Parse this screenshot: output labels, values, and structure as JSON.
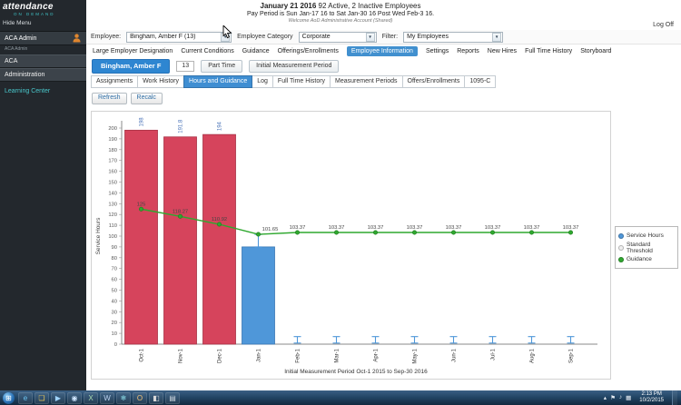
{
  "header": {
    "date_bold": "January 21 2016",
    "date_rest": " 92 Active, 2 Inactive Employees",
    "pay_period": "Pay Period is Sun Jan-17 16 to Sat Jan-30 16 Post Wed Feb-3 16.",
    "welcome": "Welcome AoD Administrative Account (Shared)",
    "log_off": "Log Off"
  },
  "sidebar": {
    "logo_line1": "attendance",
    "logo_line2": "ON DEMAND",
    "hide_menu": "Hide Menu",
    "account_name": "ACA Admin",
    "account_sub": "ACA Admin",
    "items": [
      {
        "label": "ACA"
      },
      {
        "label": "Administration"
      }
    ],
    "learning_center": "Learning Center"
  },
  "toolbar": {
    "employee_label": "Employee:",
    "employee_value": "Bingham, Amber F (13)",
    "category_label": "Employee Category",
    "category_value": "Corporate",
    "filter_label": "Filter:",
    "filter_value": "My Employees"
  },
  "tabs": {
    "active_index": 4,
    "items": [
      "Large Employer Designation",
      "Current Conditions",
      "Guidance",
      "Offerings/Enrollments",
      "Employee Information",
      "Settings",
      "Reports",
      "New Hires",
      "Full Time History",
      "Storyboard"
    ]
  },
  "employee_bar": {
    "name": "Bingham, Amber F",
    "number": "13",
    "type": "Part Time",
    "period": "Initial Measurement Period"
  },
  "subtabs": {
    "active_index": 2,
    "items": [
      "Assignments",
      "Work History",
      "Hours and Guidance",
      "Log",
      "Full Time History",
      "Measurement Periods",
      "Offers/Enrollments",
      "1095-C"
    ]
  },
  "actions": {
    "refresh": "Refresh",
    "recalc": "Recalc"
  },
  "chart_data": {
    "type": "bar",
    "categories": [
      "Oct-1",
      "Nov-1",
      "Dec-1",
      "Jan-1",
      "Feb-1",
      "Mar-1",
      "Apr-1",
      "May-1",
      "Jun-1",
      "Jul-1",
      "Aug-1",
      "Sep-1"
    ],
    "series": [
      {
        "name": "Service Hours",
        "type": "bar",
        "values": [
          198,
          191.8,
          194,
          90,
          null,
          null,
          null,
          null,
          null,
          null,
          null,
          null
        ],
        "labels": [
          "198",
          "191.8",
          "194",
          "",
          "",
          "",
          "",
          "",
          "",
          "",
          "",
          ""
        ],
        "colors": [
          "#d6445c",
          "#d6445c",
          "#d6445c",
          "#4f97d9"
        ],
        "strokes": [
          "#a83246",
          "#a83246",
          "#a83246",
          "#3a78b5"
        ]
      },
      {
        "name": "Guidance",
        "type": "line",
        "color": "#2fa82f",
        "point_stroke": "#1e7a1e",
        "values": [
          125,
          118.27,
          110.92,
          101.65,
          103.37,
          103.37,
          103.37,
          103.37,
          103.37,
          103.37,
          103.37,
          103.37
        ],
        "labels": [
          "125",
          "118.27",
          "110.92",
          "101.65",
          "103.37",
          "103.37",
          "103.37",
          "103.37",
          "103.37",
          "103.37",
          "103.37",
          "103.37"
        ]
      }
    ],
    "error_bars": [
      null,
      null,
      null,
      [
        90,
        101.5
      ],
      [
        1,
        7
      ],
      [
        1,
        7
      ],
      [
        1,
        7
      ],
      [
        1,
        7
      ],
      [
        1,
        7
      ],
      [
        1,
        7
      ],
      [
        1,
        7
      ],
      [
        1,
        7
      ]
    ],
    "error_bar_color": "#4f97d9",
    "ylabel": "Service Hours",
    "xlabel": "Initial Measurement Period Oct-1 2015 to Sep-30 2016",
    "ylim": [
      0,
      200
    ],
    "ytick_step": 10,
    "bar_label_color": "#4a73b8",
    "legend_position": "right",
    "legend": [
      {
        "label": "Service Hours",
        "color": "#4f97d9"
      },
      {
        "label": "Standard Threshold",
        "color": "#efefef"
      },
      {
        "label": "Guidance",
        "color": "#2fa82f"
      }
    ]
  },
  "taskbar": {
    "start_glyph": "⊞",
    "icons": [
      {
        "name": "ie-icon",
        "glyph": "e",
        "fg": "#6cc4f2"
      },
      {
        "name": "folder-icon",
        "glyph": "❏",
        "fg": "#e8c55a"
      },
      {
        "name": "media-player-icon",
        "glyph": "▶",
        "fg": "#9fd4ff"
      },
      {
        "name": "chrome-icon",
        "glyph": "◉",
        "fg": "#cfe6ff"
      },
      {
        "name": "excel-icon",
        "glyph": "X",
        "fg": "#a8d8b0"
      },
      {
        "name": "word-icon",
        "glyph": "W",
        "fg": "#bcd2f0"
      },
      {
        "name": "snowflake-icon",
        "glyph": "❄",
        "fg": "#8fe0ea"
      },
      {
        "name": "outlook-icon",
        "glyph": "O",
        "fg": "#f0c27a"
      },
      {
        "name": "paint-icon",
        "glyph": "◧",
        "fg": "#d8d8d8"
      },
      {
        "name": "notepad-icon",
        "glyph": "▤",
        "fg": "#cfd8e0"
      }
    ],
    "tray_icons": [
      {
        "name": "show-hidden-icons",
        "glyph": "▴"
      },
      {
        "name": "action-center-flag-icon",
        "glyph": "⚑"
      },
      {
        "name": "volume-icon",
        "glyph": "♪"
      },
      {
        "name": "network-icon",
        "glyph": "▦"
      }
    ],
    "time": "2:13 PM",
    "date": "10/2/2015"
  }
}
